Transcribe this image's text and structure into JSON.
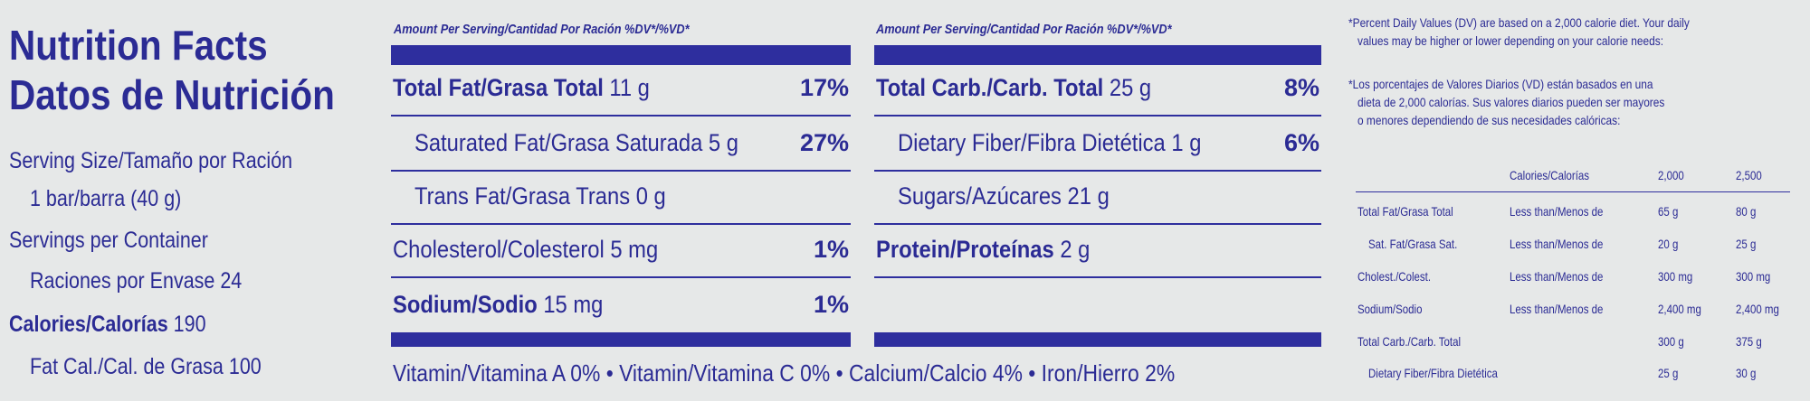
{
  "left": {
    "title_en": "Nutrition Facts",
    "title_es": "Datos de Nutrición",
    "serving_size_label": "Serving Size/Tamaño por Ración",
    "serving_size_value": "1 bar/barra (40 g)",
    "servings_label": "Servings per Container",
    "servings_es_label": "Raciones por Envase",
    "servings_value": "24",
    "calories_label": "Calories/Calorías",
    "calories_value": "190",
    "fat_cal_label": "Fat Cal./Cal. de Grasa",
    "fat_cal_value": "100"
  },
  "col1": {
    "header": "Amount Per Serving/Cantidad Por Ración  %DV*/%VD*",
    "rows": [
      {
        "label": "Total Fat/Grasa Total",
        "amount": "11 g",
        "pct": "17%"
      },
      {
        "label": "Saturated Fat/Grasa Saturada",
        "amount": "5 g",
        "pct": "27%"
      },
      {
        "label": "Trans Fat/Grasa Trans",
        "amount": "0 g",
        "pct": ""
      },
      {
        "label": "Cholesterol/Colesterol",
        "amount": "5 mg",
        "pct": "1%"
      },
      {
        "label": "Sodium/Sodio",
        "amount": "15 mg",
        "pct": "1%"
      }
    ]
  },
  "col2": {
    "header": "Amount Per Serving/Cantidad Por Ración  %DV*/%VD*",
    "rows": [
      {
        "label": "Total Carb./Carb. Total",
        "amount": "25 g",
        "pct": "8%"
      },
      {
        "label": "Dietary Fiber/Fibra Dietética",
        "amount": "1 g",
        "pct": "6%"
      },
      {
        "label": "Sugars/Azúcares",
        "amount": "21 g",
        "pct": ""
      },
      {
        "label": "Protein/Proteínas",
        "amount": "2 g",
        "pct": ""
      }
    ]
  },
  "vitamins": "Vitamin/Vitamina A 0%  •  Vitamin/Vitamina C 0%  •  Calcium/Calcio 4%  •  Iron/Hierro 2%",
  "footnote": {
    "en_line1": "*Percent Daily Values (DV) are based on a 2,000 calorie diet. Your daily",
    "en_line2": "values may be higher or lower depending on your calorie needs:",
    "es_line1": "*Los porcentajes de Valores Diarios (VD) están basados en una",
    "es_line2": "dieta de 2,000 calorías. Sus valores diarios pueden ser mayores",
    "es_line3": "o menores dependiendo de sus necesidades calóricas:",
    "table_header": {
      "label": "Calories/Calorías",
      "c1": "2,000",
      "c2": "2,500"
    },
    "table_rows": [
      {
        "name": "Total Fat/Grasa Total",
        "qual": "Less than/Menos de",
        "c1": "65 g",
        "c2": "80 g"
      },
      {
        "name": "Sat. Fat/Grasa Sat.",
        "qual": "Less than/Menos de",
        "c1": "20 g",
        "c2": "25 g"
      },
      {
        "name": "Cholest./Colest.",
        "qual": "Less than/Menos de",
        "c1": "300 mg",
        "c2": "300 mg"
      },
      {
        "name": "Sodium/Sodio",
        "qual": "Less than/Menos de",
        "c1": "2,400 mg",
        "c2": "2,400 mg"
      },
      {
        "name": "Total Carb./Carb. Total",
        "qual": "",
        "c1": "300 g",
        "c2": "375 g"
      },
      {
        "name": "Dietary Fiber/Fibra Dietética",
        "qual": "",
        "c1": "25 g",
        "c2": "30 g"
      }
    ]
  }
}
